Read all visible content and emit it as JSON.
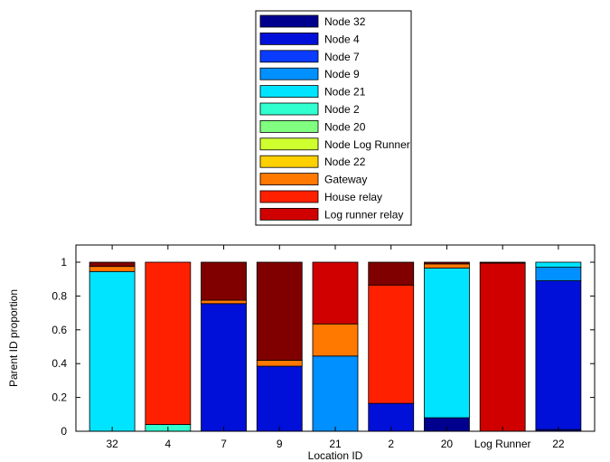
{
  "chart_data": {
    "type": "bar",
    "stacked": true,
    "xlabel": "Location ID",
    "ylabel": "Parent ID proportion",
    "ylim": [
      0,
      1
    ],
    "yticks": [
      0,
      0.2,
      0.4,
      0.6,
      0.8,
      1
    ],
    "ytick_labels": [
      "0",
      "0.2",
      "0.4",
      "0.6",
      "0.8",
      "1"
    ],
    "categories": [
      "32",
      "4",
      "7",
      "9",
      "21",
      "2",
      "20",
      "Log Runner",
      "22"
    ],
    "legend_position": "top-center",
    "series": [
      {
        "name": "Node 32",
        "color": "#00008f",
        "values": [
          0,
          0,
          0,
          0,
          0,
          0,
          0.08,
          0,
          0.01
        ]
      },
      {
        "name": "Node 4",
        "color": "#0010d8",
        "values": [
          0,
          0,
          0.755,
          0.385,
          0,
          0.165,
          0,
          0,
          0.88
        ]
      },
      {
        "name": "Node 7",
        "color": "#0a3cff",
        "values": [
          0,
          0,
          0,
          0,
          0,
          0,
          0,
          0,
          0
        ]
      },
      {
        "name": "Node 9",
        "color": "#0090ff",
        "values": [
          0,
          0,
          0,
          0,
          0.445,
          0,
          0,
          0,
          0.08
        ]
      },
      {
        "name": "Node 21",
        "color": "#00e4ff",
        "values": [
          0.945,
          0,
          0,
          0,
          0,
          0,
          0.885,
          0,
          0.03
        ]
      },
      {
        "name": "Node 2",
        "color": "#30ffd0",
        "values": [
          0,
          0.04,
          0,
          0,
          0,
          0,
          0,
          0,
          0
        ]
      },
      {
        "name": "Node 20",
        "color": "#80ff80",
        "values": [
          0,
          0,
          0,
          0,
          0,
          0,
          0,
          0,
          0
        ]
      },
      {
        "name": "Node Log Runner",
        "color": "#d0ff30",
        "values": [
          0,
          0,
          0,
          0,
          0,
          0,
          0,
          0,
          0
        ]
      },
      {
        "name": "Node 22",
        "color": "#ffd000",
        "values": [
          0,
          0,
          0,
          0,
          0,
          0,
          0,
          0,
          0
        ]
      },
      {
        "name": "Gateway",
        "color": "#ff7800",
        "values": [
          0.03,
          0,
          0.02,
          0.035,
          0.19,
          0,
          0.025,
          0,
          0
        ]
      },
      {
        "name": "House relay",
        "color": "#ff2000",
        "values": [
          0,
          0.96,
          0,
          0,
          0,
          0.7,
          0,
          0,
          0
        ]
      },
      {
        "name": "Log runner relay",
        "color": "#d00000",
        "values": [
          0,
          0,
          0,
          0,
          0.365,
          0,
          0,
          0.995,
          0
        ]
      },
      {
        "name": "",
        "color": "#800000",
        "values": [
          0.025,
          0,
          0.225,
          0.58,
          0,
          0.135,
          0.01,
          0.005,
          0
        ]
      }
    ]
  }
}
